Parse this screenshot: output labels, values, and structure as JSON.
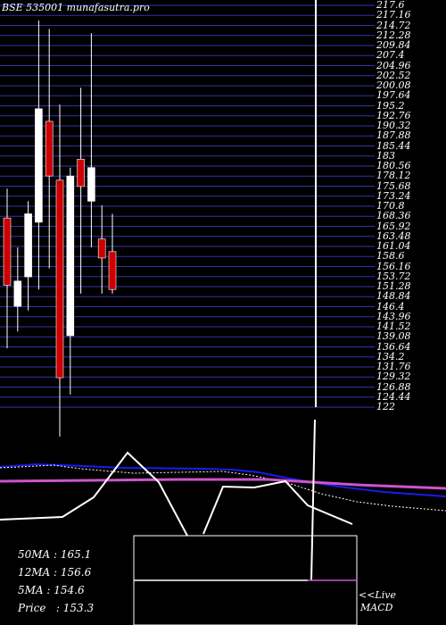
{
  "chart_data": [
    {
      "type": "candlestick",
      "title": "BSE 535001 munafasutra.pro",
      "ylim": [
        122,
        217.6
      ],
      "y_ticks": [
        "217.6",
        "217.16",
        "214.72",
        "212.28",
        "209.84",
        "207.4",
        "204.96",
        "202.52",
        "200.08",
        "197.64",
        "195.2",
        "192.76",
        "190.32",
        "187.88",
        "185.44",
        "183",
        "180.56",
        "178.12",
        "175.68",
        "173.24",
        "170.8",
        "168.36",
        "165.92",
        "163.48",
        "161.04",
        "158.6",
        "156.16",
        "153.72",
        "151.28",
        "148.84",
        "146.4",
        "143.96",
        "141.52",
        "139.08",
        "136.64",
        "134.2",
        "131.76",
        "129.32",
        "126.88",
        "124.44",
        "122"
      ],
      "candles": [
        {
          "open": 167.0,
          "high": 174.0,
          "low": 136.0,
          "close": 151.0,
          "color": "red"
        },
        {
          "open": 146.0,
          "high": 160.0,
          "low": 140.0,
          "close": 152.0,
          "color": "white"
        },
        {
          "open": 153.0,
          "high": 171.0,
          "low": 145.0,
          "close": 168.0,
          "color": "white"
        },
        {
          "open": 166.0,
          "high": 214.0,
          "low": 150.0,
          "close": 193.0,
          "color": "white"
        },
        {
          "open": 190.0,
          "high": 212.0,
          "low": 155.0,
          "close": 177.0,
          "color": "red"
        },
        {
          "open": 176.0,
          "high": 194.0,
          "low": 115.0,
          "close": 129.0,
          "color": "red"
        },
        {
          "open": 139.0,
          "high": 179.0,
          "low": 125.0,
          "close": 177.0,
          "color": "white"
        },
        {
          "open": 181.0,
          "high": 198.0,
          "low": 149.0,
          "close": 174.5,
          "color": "red"
        },
        {
          "open": 171.0,
          "high": 211.0,
          "low": 160.0,
          "close": 179.0,
          "color": "white"
        },
        {
          "open": 162.0,
          "high": 170.0,
          "low": 149.0,
          "close": 157.5,
          "color": "red"
        },
        {
          "open": 159.0,
          "high": 168.0,
          "low": 149.0,
          "close": 150.0,
          "color": "red"
        }
      ],
      "moving_averages": {
        "ma50": "165.1",
        "ma12": "156.6",
        "ma5": "154.6",
        "price": "153.3"
      }
    },
    {
      "type": "line",
      "label": "MACD",
      "live_label": "<<Live"
    }
  ],
  "labels": {
    "ma50": "50MA : 165.1",
    "ma12": "12MA : 156.6",
    "ma5": "5MA : 154.6",
    "price": "Price   : 153.3",
    "live": "<<Live",
    "macd": "MACD"
  },
  "colors": {
    "background": "#000000",
    "grid_line": "#3333aa",
    "candle_up": "#ffffff",
    "candle_down": "#cc0000",
    "ma_blue": "#1a1aee",
    "ma_magenta": "#cc55cc",
    "ma_white": "#ffffff"
  }
}
